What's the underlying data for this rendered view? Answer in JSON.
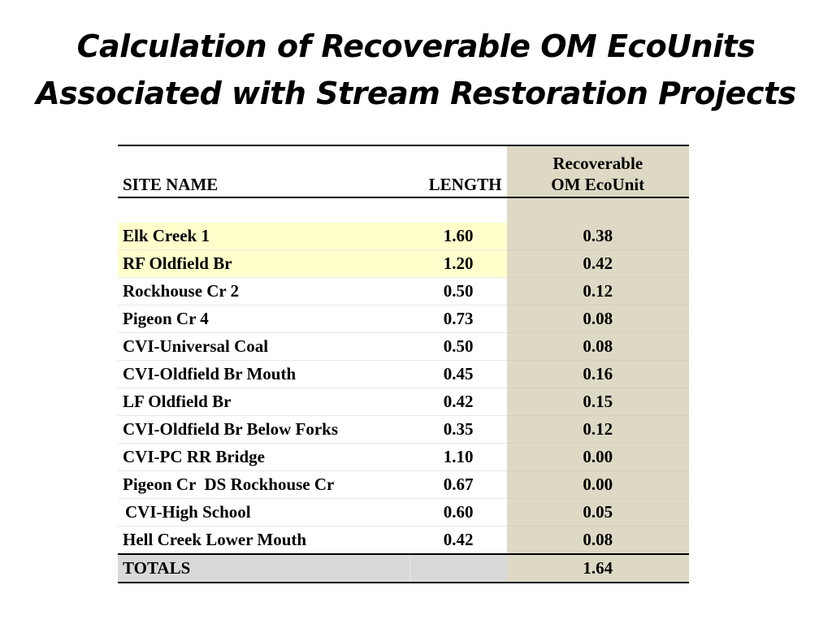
{
  "title": {
    "line1": "Calculation of Recoverable OM EcoUnits",
    "line2": "Associated with Stream Restoration Projects"
  },
  "table": {
    "headers": {
      "site": "SITE NAME",
      "length": "LENGTH",
      "om_line1": "Recoverable",
      "om_line2": "OM EcoUnit"
    },
    "rows": [
      {
        "site": "Elk Creek 1",
        "length": "1.60",
        "om": "0.38",
        "highlight": true
      },
      {
        "site": "RF Oldfield Br",
        "length": "1.20",
        "om": "0.42",
        "highlight": true
      },
      {
        "site": "Rockhouse Cr 2",
        "length": "0.50",
        "om": "0.12"
      },
      {
        "site": "Pigeon Cr 4",
        "length": "0.73",
        "om": "0.08"
      },
      {
        "site": "CVI-Universal Coal",
        "length": "0.50",
        "om": "0.08"
      },
      {
        "site": "CVI-Oldfield Br Mouth",
        "length": "0.45",
        "om": "0.16"
      },
      {
        "site": "LF Oldfield Br",
        "length": "0.42",
        "om": "0.15"
      },
      {
        "site": "CVI-Oldfield Br Below Forks",
        "length": "0.35",
        "om": "0.12"
      },
      {
        "site": "CVI-PC RR Bridge",
        "length": "1.10",
        "om": "0.00"
      },
      {
        "site": "Pigeon Cr  DS Rockhouse Cr",
        "length": "0.67",
        "om": "0.00"
      },
      {
        "site": "CVI-High School",
        "length": "0.60",
        "om": "0.05"
      },
      {
        "site": "Hell Creek Lower Mouth",
        "length": "0.42",
        "om": "0.08"
      }
    ],
    "totals": {
      "label": "TOTALS",
      "length": "",
      "om": "1.64"
    }
  },
  "colors": {
    "highlight_rows": "#ffffcc",
    "om_column": "#ddd9c4",
    "totals_row": "#d9d9d9"
  }
}
